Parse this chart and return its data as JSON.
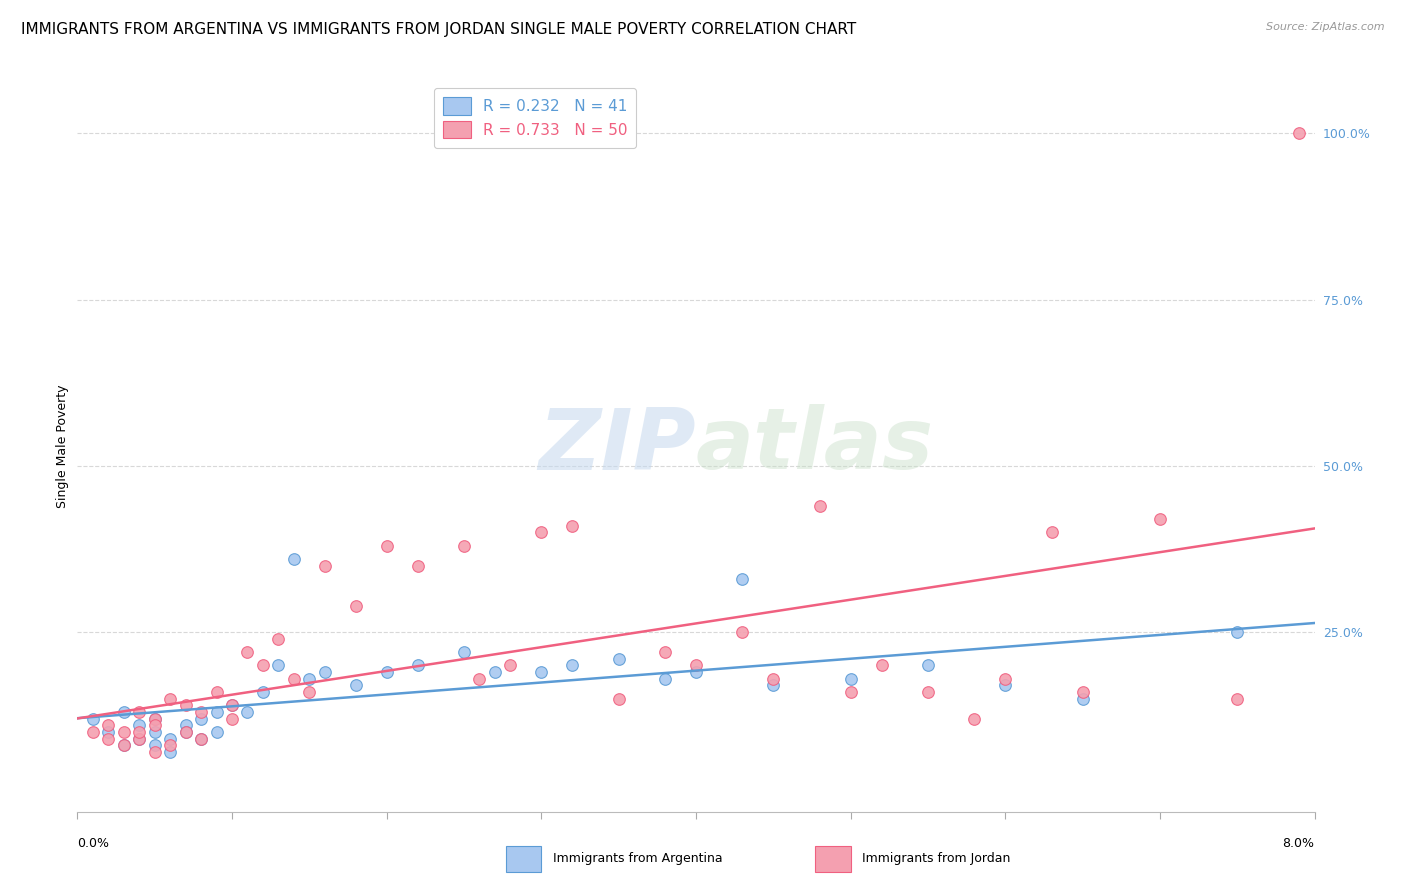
{
  "title": "IMMIGRANTS FROM ARGENTINA VS IMMIGRANTS FROM JORDAN SINGLE MALE POVERTY CORRELATION CHART",
  "source": "Source: ZipAtlas.com",
  "ylabel": "Single Male Poverty",
  "ytick_labels": [
    "25.0%",
    "50.0%",
    "75.0%",
    "100.0%"
  ],
  "ytick_values": [
    0.25,
    0.5,
    0.75,
    1.0
  ],
  "xlim": [
    0.0,
    0.08
  ],
  "ylim": [
    -0.02,
    1.08
  ],
  "watermark_zip": "ZIP",
  "watermark_atlas": "atlas",
  "argentina_R": "0.232",
  "argentina_N": "41",
  "jordan_R": "0.733",
  "jordan_N": "50",
  "argentina_color": "#a8c8f0",
  "jordan_color": "#f4a0b0",
  "argentina_line_color": "#5b9bd5",
  "jordan_line_color": "#f06080",
  "ytick_color": "#5b9bd5",
  "argentina_x": [
    0.001,
    0.002,
    0.003,
    0.003,
    0.004,
    0.004,
    0.005,
    0.005,
    0.005,
    0.006,
    0.006,
    0.007,
    0.007,
    0.008,
    0.008,
    0.009,
    0.009,
    0.01,
    0.011,
    0.012,
    0.013,
    0.014,
    0.015,
    0.016,
    0.018,
    0.02,
    0.022,
    0.025,
    0.027,
    0.03,
    0.032,
    0.035,
    0.038,
    0.04,
    0.043,
    0.045,
    0.05,
    0.055,
    0.06,
    0.065,
    0.075
  ],
  "argentina_y": [
    0.12,
    0.1,
    0.08,
    0.13,
    0.09,
    0.11,
    0.12,
    0.08,
    0.1,
    0.07,
    0.09,
    0.11,
    0.1,
    0.12,
    0.09,
    0.13,
    0.1,
    0.14,
    0.13,
    0.16,
    0.2,
    0.36,
    0.18,
    0.19,
    0.17,
    0.19,
    0.2,
    0.22,
    0.19,
    0.19,
    0.2,
    0.21,
    0.18,
    0.19,
    0.33,
    0.17,
    0.18,
    0.2,
    0.17,
    0.15,
    0.25
  ],
  "jordan_x": [
    0.001,
    0.002,
    0.002,
    0.003,
    0.003,
    0.004,
    0.004,
    0.004,
    0.005,
    0.005,
    0.005,
    0.006,
    0.006,
    0.007,
    0.007,
    0.008,
    0.008,
    0.009,
    0.01,
    0.01,
    0.011,
    0.012,
    0.013,
    0.014,
    0.015,
    0.016,
    0.018,
    0.02,
    0.022,
    0.025,
    0.026,
    0.028,
    0.03,
    0.032,
    0.035,
    0.038,
    0.04,
    0.043,
    0.045,
    0.048,
    0.05,
    0.052,
    0.055,
    0.058,
    0.06,
    0.063,
    0.065,
    0.07,
    0.075,
    0.079
  ],
  "jordan_y": [
    0.1,
    0.09,
    0.11,
    0.08,
    0.1,
    0.09,
    0.13,
    0.1,
    0.07,
    0.12,
    0.11,
    0.15,
    0.08,
    0.1,
    0.14,
    0.09,
    0.13,
    0.16,
    0.12,
    0.14,
    0.22,
    0.2,
    0.24,
    0.18,
    0.16,
    0.35,
    0.29,
    0.38,
    0.35,
    0.38,
    0.18,
    0.2,
    0.4,
    0.41,
    0.15,
    0.22,
    0.2,
    0.25,
    0.18,
    0.44,
    0.16,
    0.2,
    0.16,
    0.12,
    0.18,
    0.4,
    0.16,
    0.42,
    0.15,
    1.0
  ],
  "background_color": "#ffffff",
  "grid_color": "#d8d8d8",
  "title_fontsize": 11,
  "axis_label_fontsize": 9,
  "tick_fontsize": 9,
  "legend_fontsize": 11
}
